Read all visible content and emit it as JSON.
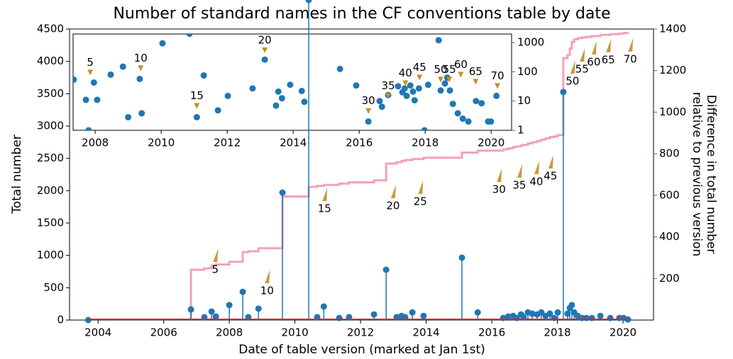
{
  "chart_data": [
    {
      "type": "line",
      "title": "Number of standard names in the CF conventions table by date",
      "xlabel": "Date of table version (marked at Jan 1st)",
      "ylabel": "Total number",
      "y2label": [
        "Difference in total number",
        "relative to previous version"
      ],
      "x": [
        2003.7,
        2006.83,
        2007.24,
        2007.46,
        2007.59,
        2008.0,
        2008.41,
        2008.58,
        2008.89,
        2009.62,
        2010.42,
        2010.68,
        2010.88,
        2011.35,
        2011.65,
        2012.41,
        2012.78,
        2013.1,
        2013.25,
        2013.36,
        2013.58,
        2013.92,
        2015.09,
        2015.57,
        2016.35,
        2016.5,
        2016.65,
        2016.76,
        2016.89,
        2016.97,
        2017.1,
        2017.23,
        2017.38,
        2017.51,
        2017.64,
        2017.77,
        2017.9,
        2018.01,
        2018.18,
        2018.31,
        2018.38,
        2018.44,
        2018.51,
        2018.62,
        2018.75,
        2018.88,
        2019.05,
        2019.31,
        2019.61,
        2019.89,
        2020.02,
        2020.15
      ],
      "series": [
        {
          "style": "step",
          "color": "#f2a3b7",
          "values": [
            0,
            777,
            800,
            843,
            860,
            900,
            1050,
            1065,
            1110,
            1910,
            2060,
            2075,
            2090,
            2110,
            2130,
            2160,
            2420,
            2440,
            2460,
            2475,
            2490,
            2510,
            2590,
            2620,
            2640,
            2655,
            2675,
            2685,
            2700,
            2710,
            2730,
            2750,
            2770,
            2790,
            2810,
            2830,
            2840,
            2860,
            4050,
            4100,
            4200,
            4300,
            4340,
            4360,
            4370,
            4380,
            4390,
            4410,
            4420,
            4430,
            4440,
            4445
          ]
        },
        {
          "style": "stem",
          "axis": "y2",
          "color": "#1f77b4",
          "baseline_color": "#d62728",
          "values": [
            0,
            51,
            14,
            41,
            17,
            72,
            136,
            14,
            55,
            613,
            1540,
            14,
            65,
            10,
            14,
            27,
            242,
            14,
            20,
            14,
            37,
            20,
            300,
            37,
            10,
            17,
            20,
            10,
            27,
            14,
            37,
            31,
            27,
            37,
            20,
            31,
            10,
            37,
            1097,
            31,
            58,
            72,
            37,
            20,
            10,
            10,
            10,
            20,
            10,
            10,
            10,
            3
          ]
        }
      ],
      "xlim": [
        2003.13,
        2020.93
      ],
      "xticks": [
        2004,
        2006,
        2008,
        2010,
        2012,
        2014,
        2016,
        2018,
        2020
      ],
      "ylim": [
        0,
        4500
      ],
      "yticks": [
        0,
        500,
        1000,
        1500,
        2000,
        2500,
        3000,
        3500,
        4000,
        4500
      ],
      "y2lim": [
        0,
        1400
      ],
      "y2ticks": [
        200,
        400,
        600,
        800,
        1000,
        1200,
        1400
      ],
      "y2_color": "#1f77b4",
      "annotation_color": "#c89b3c",
      "annotation_arrow": "up",
      "annotations": [
        {
          "text": "5",
          "x": 2007.57,
          "y": 777
        },
        {
          "text": "10",
          "x": 2009.15,
          "y": 449
        },
        {
          "text": "15",
          "x": 2010.9,
          "y": 1719
        },
        {
          "text": "20",
          "x": 2012.99,
          "y": 1763
        },
        {
          "text": "25",
          "x": 2013.82,
          "y": 1829
        },
        {
          "text": "30",
          "x": 2016.22,
          "y": 2015
        },
        {
          "text": "35",
          "x": 2016.84,
          "y": 2081
        },
        {
          "text": "40",
          "x": 2017.36,
          "y": 2135
        },
        {
          "text": "45",
          "x": 2017.79,
          "y": 2223
        },
        {
          "text": "50",
          "x": 2018.46,
          "y": 3690
        },
        {
          "text": "55",
          "x": 2018.75,
          "y": 3876
        },
        {
          "text": "60",
          "x": 2019.11,
          "y": 3986
        },
        {
          "text": "65",
          "x": 2019.55,
          "y": 4019
        },
        {
          "text": "70",
          "x": 2020.22,
          "y": 4030
        }
      ]
    },
    {
      "type": "scatter",
      "x": [
        2007.35,
        2007.72,
        2007.8,
        2007.96,
        2008.06,
        2008.47,
        2008.84,
        2009.0,
        2009.35,
        2009.41,
        2010.04,
        2010.86,
        2011.08,
        2011.29,
        2011.72,
        2012.02,
        2012.77,
        2013.14,
        2013.48,
        2013.55,
        2013.66,
        2013.91,
        2014.26,
        2014.34,
        2015.42,
        2015.91,
        2016.28,
        2016.62,
        2016.69,
        2016.88,
        2017.18,
        2017.31,
        2017.38,
        2017.44,
        2017.55,
        2017.63,
        2017.68,
        2017.81,
        2017.98,
        2018.09,
        2018.41,
        2018.47,
        2018.6,
        2018.67,
        2018.75,
        2018.84,
        2018.99,
        2019.14,
        2019.31,
        2019.54,
        2019.71,
        2019.91,
        2019.99,
        2020.16
      ],
      "values": [
        54,
        11,
        1,
        43,
        11,
        80,
        150,
        2.8,
        57,
        3.8,
        940,
        2000,
        2.8,
        75,
        4.8,
        15,
        27,
        260,
        7,
        21,
        12.5,
        36,
        22,
        9.4,
        125,
        34,
        2,
        10,
        6.4,
        16,
        32,
        20,
        27,
        15,
        34,
        21,
        10.6,
        27,
        1,
        36,
        1200,
        23,
        40,
        63,
        23,
        8,
        3.8,
        2.5,
        2,
        10,
        8.4,
        2,
        2,
        15
      ],
      "color": "#1f77b4",
      "log_y": true,
      "xlim": [
        2007.33,
        2020.62
      ],
      "xticks": [
        2008,
        2010,
        2012,
        2014,
        2016,
        2018,
        2020
      ],
      "ylim": [
        1,
        1960
      ],
      "yticks": [
        1,
        10,
        100,
        1000
      ],
      "y_color": "#1f77b4",
      "annotation_color": "#c0902a",
      "annotation_arrow": "down",
      "annotations": [
        {
          "text": "5",
          "x": 2007.85,
          "y": 207
        },
        {
          "text": "10",
          "x": 2009.38,
          "y": 290
        },
        {
          "text": "15",
          "x": 2011.08,
          "y": 14.8
        },
        {
          "text": "20",
          "x": 2013.14,
          "y": 1190
        },
        {
          "text": "30",
          "x": 2016.28,
          "y": 10
        },
        {
          "text": "35",
          "x": 2016.88,
          "y": 32.6
        },
        {
          "text": "40",
          "x": 2017.4,
          "y": 89
        },
        {
          "text": "45",
          "x": 2017.83,
          "y": 140
        },
        {
          "text": "50",
          "x": 2018.47,
          "y": 118
        },
        {
          "text": "55",
          "x": 2018.73,
          "y": 118
        },
        {
          "text": "60",
          "x": 2019.08,
          "y": 175
        },
        {
          "text": "65",
          "x": 2019.53,
          "y": 100
        },
        {
          "text": "70",
          "x": 2020.19,
          "y": 71
        }
      ]
    }
  ]
}
